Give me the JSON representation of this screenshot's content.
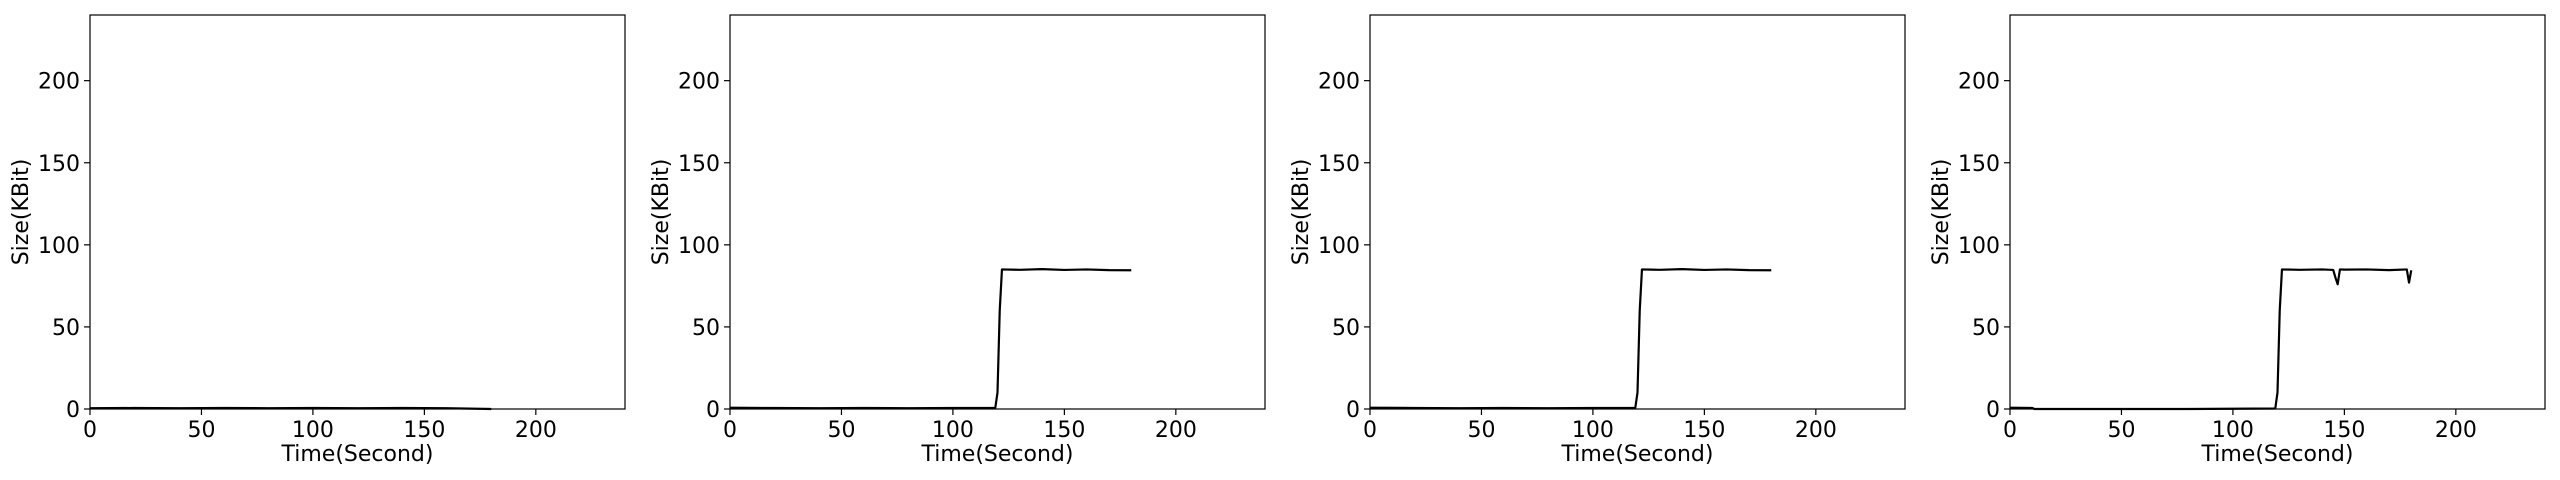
{
  "chart_data": [
    {
      "type": "line",
      "xlabel": "Time(Second)",
      "ylabel": "Size(KBit)",
      "xlim": [
        0,
        240
      ],
      "ylim": [
        0,
        240
      ],
      "xticks": [
        0,
        50,
        100,
        150,
        200
      ],
      "yticks": [
        0,
        50,
        100,
        150,
        200
      ],
      "grid": false,
      "series": [
        {
          "color": "#000000",
          "x": [
            0,
            20,
            40,
            60,
            80,
            100,
            120,
            140,
            160,
            180
          ],
          "y": [
            0.5,
            0.6,
            0.5,
            0.6,
            0.5,
            0.6,
            0.5,
            0.6,
            0.5,
            0
          ]
        }
      ]
    },
    {
      "type": "line",
      "xlabel": "Time(Second)",
      "ylabel": "Size(KBit)",
      "xlim": [
        0,
        240
      ],
      "ylim": [
        0,
        240
      ],
      "xticks": [
        0,
        50,
        100,
        150,
        200
      ],
      "yticks": [
        0,
        50,
        100,
        150,
        200
      ],
      "grid": false,
      "series": [
        {
          "color": "#000000",
          "x": [
            0,
            20,
            40,
            60,
            80,
            100,
            119,
            120,
            121,
            122,
            130,
            140,
            150,
            160,
            170,
            180
          ],
          "y": [
            0.8,
            0.6,
            0.5,
            0.6,
            0.5,
            0.6,
            0.7,
            10,
            60,
            85,
            84.8,
            85.2,
            84.7,
            85,
            84.6,
            84.5
          ]
        }
      ]
    },
    {
      "type": "line",
      "xlabel": "Time(Second)",
      "ylabel": "Size(KBit)",
      "xlim": [
        0,
        240
      ],
      "ylim": [
        0,
        240
      ],
      "xticks": [
        0,
        50,
        100,
        150,
        200
      ],
      "yticks": [
        0,
        50,
        100,
        150,
        200
      ],
      "grid": false,
      "series": [
        {
          "color": "#000000",
          "x": [
            0,
            20,
            40,
            60,
            80,
            100,
            119,
            120,
            121,
            122,
            130,
            140,
            150,
            160,
            170,
            180
          ],
          "y": [
            0.8,
            0.6,
            0.5,
            0.6,
            0.5,
            0.6,
            0.7,
            10,
            60,
            85,
            84.8,
            85.2,
            84.7,
            85,
            84.6,
            84.5
          ]
        }
      ]
    },
    {
      "type": "line",
      "xlabel": "Time(Second)",
      "ylabel": "Size(KBit)",
      "xlim": [
        0,
        240
      ],
      "ylim": [
        0,
        240
      ],
      "xticks": [
        0,
        50,
        100,
        150,
        200
      ],
      "yticks": [
        0,
        50,
        100,
        150,
        200
      ],
      "grid": false,
      "series": [
        {
          "color": "#000000",
          "x": [
            0,
            10,
            11,
            40,
            80,
            119,
            120,
            121,
            122,
            130,
            140,
            145,
            146,
            147,
            148,
            150,
            160,
            170,
            178,
            179,
            180
          ],
          "y": [
            0.8,
            0.6,
            0,
            0,
            0,
            0.3,
            10,
            60,
            85,
            84.8,
            85,
            84.7,
            80,
            76,
            85,
            84.9,
            85,
            84.6,
            85,
            77,
            84.5
          ]
        }
      ]
    }
  ]
}
